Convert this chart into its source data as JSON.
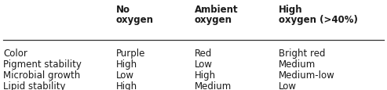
{
  "col_headers": [
    "No\noxygen",
    "Ambient\noxygen",
    "High\noxygen (>40%)"
  ],
  "row_headers": [
    "Color",
    "Pigment stability",
    "Microbial growth",
    "Lipid stability"
  ],
  "cells": [
    [
      "Purple",
      "Red",
      "Bright red"
    ],
    [
      "High",
      "Low",
      "Medium"
    ],
    [
      "Low",
      "High",
      "Medium-low"
    ],
    [
      "High",
      "Medium",
      "Low"
    ]
  ],
  "background_color": "#ffffff",
  "text_color": "#1a1a1a",
  "header_fontsize": 8.5,
  "cell_fontsize": 8.5,
  "fig_width": 4.93,
  "fig_height": 1.16,
  "dpi": 100
}
